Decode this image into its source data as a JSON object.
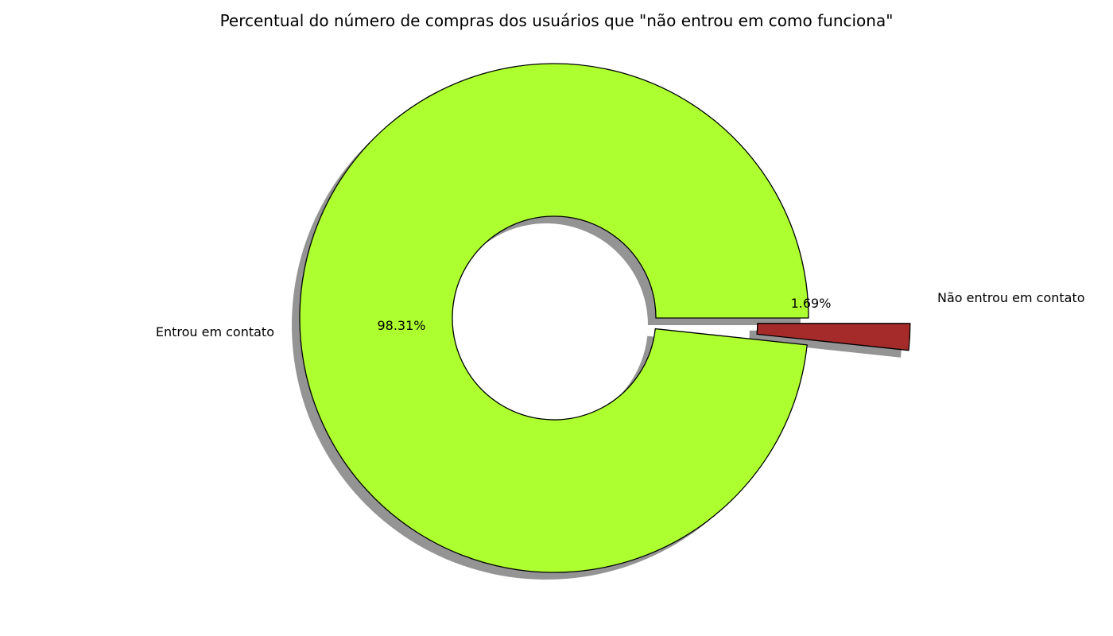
{
  "chart_data": {
    "type": "pie",
    "style": "donut",
    "title": "Percentual do número de compras dos usuários que \"não entrou em como funciona\"",
    "slices": [
      {
        "label": "Entrou em contato",
        "value": 98.31,
        "pct_text": "98.31%",
        "color": "#adff2f",
        "exploded": false
      },
      {
        "label": "Não entrou em contato",
        "value": 1.69,
        "pct_text": "1.69%",
        "color": "#a52a2a",
        "exploded": true
      }
    ],
    "shadow": true,
    "edge_color": "#000000"
  }
}
